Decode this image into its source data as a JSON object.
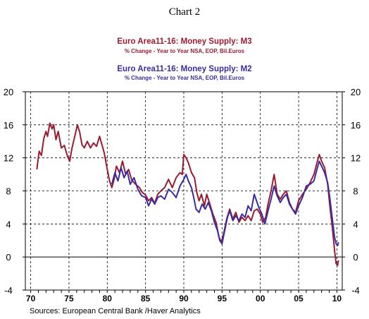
{
  "chart_data": {
    "type": "line",
    "title": "Chart 2",
    "legend": [
      {
        "title": "Euro Area11-16: Money Supply: M3",
        "subtitle": "% Change - Year to Year      NSA, EOP, Bil.Euros",
        "color": "#9b1b30"
      },
      {
        "title": "Euro Area11-16: Money Supply: M2",
        "subtitle": "% Change - Year to Year      NSA, EOP, Bil.Euros",
        "color": "#3a2ca0"
      }
    ],
    "legend_position": "top-center",
    "source": "Sources:  European Central Bank /Haver Analytics",
    "x_tick_labels": [
      "70",
      "75",
      "80",
      "85",
      "90",
      "95",
      "00",
      "05",
      "10"
    ],
    "x_tick_values": [
      1970,
      1975,
      1980,
      1985,
      1990,
      1995,
      2000,
      2005,
      2010
    ],
    "y_tick_labels": [
      "20",
      "16",
      "12",
      "8",
      "4",
      "0",
      "-4"
    ],
    "y_tick_values": [
      20,
      16,
      12,
      8,
      4,
      0,
      -4
    ],
    "xlim": [
      1969.3,
      2010.7
    ],
    "ylim": [
      -4,
      20
    ],
    "grid": true,
    "series": [
      {
        "name": "Euro Area11-16: Money Supply: M3",
        "color": "#9b1b30",
        "points": [
          [
            1970.8,
            10.6
          ],
          [
            1971.1,
            12.8
          ],
          [
            1971.4,
            12.3
          ],
          [
            1971.7,
            14.3
          ],
          [
            1972.0,
            15.2
          ],
          [
            1972.2,
            14.6
          ],
          [
            1972.5,
            16.2
          ],
          [
            1972.8,
            15.5
          ],
          [
            1973.0,
            16.0
          ],
          [
            1973.3,
            14.2
          ],
          [
            1973.6,
            15.2
          ],
          [
            1974.0,
            13.2
          ],
          [
            1974.4,
            13.5
          ],
          [
            1974.8,
            12.2
          ],
          [
            1975.1,
            11.6
          ],
          [
            1975.4,
            13.2
          ],
          [
            1975.8,
            14.8
          ],
          [
            1976.1,
            16.0
          ],
          [
            1976.4,
            15.1
          ],
          [
            1976.7,
            13.6
          ],
          [
            1977.0,
            13.2
          ],
          [
            1977.4,
            14.0
          ],
          [
            1977.8,
            13.2
          ],
          [
            1978.2,
            13.8
          ],
          [
            1978.6,
            13.4
          ],
          [
            1979.0,
            14.6
          ],
          [
            1979.3,
            13.6
          ],
          [
            1979.6,
            12.6
          ],
          [
            1980.0,
            10.6
          ],
          [
            1980.3,
            9.2
          ],
          [
            1980.6,
            8.4
          ],
          [
            1980.9,
            9.4
          ],
          [
            1981.2,
            11.0
          ],
          [
            1981.6,
            10.2
          ],
          [
            1982.0,
            11.6
          ],
          [
            1982.4,
            10.0
          ],
          [
            1982.8,
            10.6
          ],
          [
            1983.2,
            9.3
          ],
          [
            1983.7,
            8.8
          ],
          [
            1984.2,
            8.4
          ],
          [
            1984.6,
            7.8
          ],
          [
            1985.0,
            7.5
          ],
          [
            1985.4,
            6.8
          ],
          [
            1985.8,
            7.2
          ],
          [
            1986.2,
            6.5
          ],
          [
            1986.6,
            7.6
          ],
          [
            1987.0,
            8.0
          ],
          [
            1987.5,
            8.4
          ],
          [
            1988.0,
            9.4
          ],
          [
            1988.5,
            8.4
          ],
          [
            1989.0,
            9.6
          ],
          [
            1989.5,
            10.2
          ],
          [
            1989.8,
            10.0
          ],
          [
            1990.0,
            12.4
          ],
          [
            1990.3,
            12.0
          ],
          [
            1990.6,
            11.4
          ],
          [
            1991.0,
            10.2
          ],
          [
            1991.4,
            9.6
          ],
          [
            1991.7,
            7.8
          ],
          [
            1992.0,
            6.8
          ],
          [
            1992.3,
            7.6
          ],
          [
            1992.7,
            6.2
          ],
          [
            1993.0,
            7.6
          ],
          [
            1993.4,
            6.4
          ],
          [
            1993.8,
            5.2
          ],
          [
            1994.2,
            4.2
          ],
          [
            1994.6,
            2.4
          ],
          [
            1994.9,
            1.8
          ],
          [
            1995.2,
            2.8
          ],
          [
            1995.6,
            4.6
          ],
          [
            1996.0,
            5.8
          ],
          [
            1996.4,
            4.6
          ],
          [
            1996.8,
            5.4
          ],
          [
            1997.2,
            4.2
          ],
          [
            1997.6,
            4.8
          ],
          [
            1998.0,
            4.4
          ],
          [
            1998.4,
            5.0
          ],
          [
            1998.8,
            4.4
          ],
          [
            1999.2,
            5.6
          ],
          [
            1999.6,
            5.8
          ],
          [
            2000.0,
            5.2
          ],
          [
            2000.3,
            4.2
          ],
          [
            2000.7,
            4.8
          ],
          [
            2001.0,
            6.4
          ],
          [
            2001.4,
            8.0
          ],
          [
            2001.8,
            10.0
          ],
          [
            2002.2,
            7.6
          ],
          [
            2002.6,
            7.0
          ],
          [
            2003.0,
            7.6
          ],
          [
            2003.4,
            8.0
          ],
          [
            2003.8,
            6.6
          ],
          [
            2004.2,
            5.8
          ],
          [
            2004.6,
            5.4
          ],
          [
            2005.0,
            6.8
          ],
          [
            2005.5,
            7.6
          ],
          [
            2006.0,
            8.2
          ],
          [
            2006.5,
            9.0
          ],
          [
            2007.0,
            10.0
          ],
          [
            2007.4,
            11.4
          ],
          [
            2007.7,
            12.4
          ],
          [
            2008.0,
            11.6
          ],
          [
            2008.4,
            10.8
          ],
          [
            2008.8,
            8.8
          ],
          [
            2009.1,
            6.0
          ],
          [
            2009.4,
            3.6
          ],
          [
            2009.7,
            0.8
          ],
          [
            2009.9,
            -0.8
          ],
          [
            2010.1,
            -1.0
          ],
          [
            2010.2,
            -0.4
          ]
        ]
      },
      {
        "name": "Euro Area11-16: Money Supply: M2",
        "color": "#3a2ca0",
        "points": [
          [
            1980.6,
            8.8
          ],
          [
            1981.0,
            10.2
          ],
          [
            1981.4,
            9.2
          ],
          [
            1981.8,
            10.8
          ],
          [
            1982.2,
            9.6
          ],
          [
            1982.6,
            10.4
          ],
          [
            1983.0,
            8.8
          ],
          [
            1983.5,
            9.6
          ],
          [
            1984.0,
            8.2
          ],
          [
            1984.5,
            7.4
          ],
          [
            1985.0,
            7.2
          ],
          [
            1985.4,
            6.2
          ],
          [
            1985.8,
            7.0
          ],
          [
            1986.2,
            6.4
          ],
          [
            1986.6,
            7.2
          ],
          [
            1987.0,
            7.4
          ],
          [
            1987.5,
            7.0
          ],
          [
            1988.0,
            8.2
          ],
          [
            1988.5,
            7.8
          ],
          [
            1989.0,
            7.2
          ],
          [
            1989.5,
            8.6
          ],
          [
            1990.0,
            9.4
          ],
          [
            1990.3,
            10.0
          ],
          [
            1990.6,
            9.2
          ],
          [
            1991.0,
            8.4
          ],
          [
            1991.3,
            7.2
          ],
          [
            1991.6,
            5.8
          ],
          [
            1992.0,
            5.4
          ],
          [
            1992.4,
            6.4
          ],
          [
            1992.8,
            5.8
          ],
          [
            1993.2,
            6.6
          ],
          [
            1993.6,
            5.6
          ],
          [
            1994.0,
            4.2
          ],
          [
            1994.4,
            3.2
          ],
          [
            1994.7,
            2.0
          ],
          [
            1995.0,
            1.6
          ],
          [
            1995.3,
            3.0
          ],
          [
            1995.7,
            4.8
          ],
          [
            1996.0,
            5.6
          ],
          [
            1996.4,
            4.4
          ],
          [
            1996.8,
            5.0
          ],
          [
            1997.2,
            4.4
          ],
          [
            1997.6,
            5.2
          ],
          [
            1998.0,
            4.8
          ],
          [
            1998.4,
            6.2
          ],
          [
            1998.8,
            5.6
          ],
          [
            1999.2,
            7.6
          ],
          [
            1999.5,
            6.8
          ],
          [
            1999.8,
            6.0
          ],
          [
            2000.2,
            5.2
          ],
          [
            2000.6,
            4.0
          ],
          [
            2001.0,
            5.6
          ],
          [
            2001.4,
            7.0
          ],
          [
            2001.8,
            8.6
          ],
          [
            2002.2,
            7.4
          ],
          [
            2002.6,
            6.6
          ],
          [
            2003.0,
            7.2
          ],
          [
            2003.4,
            7.6
          ],
          [
            2003.8,
            6.4
          ],
          [
            2004.2,
            5.8
          ],
          [
            2004.6,
            5.2
          ],
          [
            2005.0,
            6.2
          ],
          [
            2005.5,
            7.2
          ],
          [
            2006.0,
            8.6
          ],
          [
            2006.5,
            8.8
          ],
          [
            2007.0,
            9.2
          ],
          [
            2007.4,
            10.6
          ],
          [
            2007.7,
            11.6
          ],
          [
            2008.0,
            11.0
          ],
          [
            2008.4,
            10.2
          ],
          [
            2008.8,
            9.0
          ],
          [
            2009.1,
            7.0
          ],
          [
            2009.4,
            4.6
          ],
          [
            2009.7,
            2.4
          ],
          [
            2009.9,
            1.6
          ],
          [
            2010.1,
            1.4
          ],
          [
            2010.2,
            1.8
          ]
        ]
      }
    ]
  }
}
